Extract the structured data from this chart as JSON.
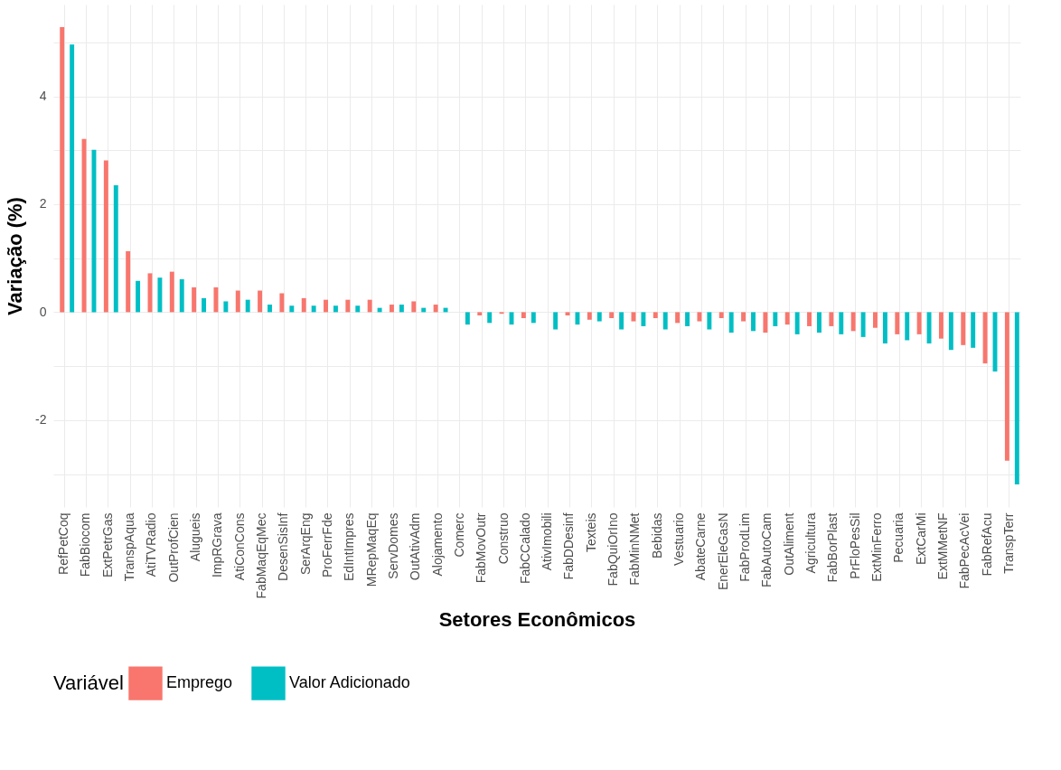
{
  "chart_data": {
    "type": "bar",
    "xlabel": "Setores Econômicos",
    "ylabel": "Variação (%)",
    "legend_title": "Variável",
    "legend": "bottom",
    "grid": true,
    "categories": [
      "RefPetCoq",
      "FabBiocom",
      "ExtPetrGas",
      "TranspAqua",
      "AtiTVRadio",
      "OutProfCien",
      "Alugueis",
      "ImpRGrava",
      "AtiConCons",
      "FabMaqEqMec",
      "DesenSisInf",
      "SerArqEng",
      "ProFerrFde",
      "EdIntImpres",
      "MRepMaqEq",
      "ServDomes",
      "OutAtivAdm",
      "Alojamento",
      "Comerc",
      "FabMovOutr",
      "Construo",
      "FabCCalado",
      "AtivImobili",
      "FabDDesinf",
      "Texteis",
      "FabQuiOrIno",
      "FabMinNMet",
      "Bebidas",
      "Vestuario",
      "AbateCarne",
      "EnerEleGasN",
      "FabProdLim",
      "FabAutoCam",
      "OutAliment",
      "Agricultura",
      "FabBorPlast",
      "PrFloPesSil",
      "ExtMinFerro",
      "Pecuaria",
      "ExtCarMi",
      "ExtMMetNF",
      "FabPecAcVei",
      "FabRefAcu",
      "TranspTerr"
    ],
    "series": [
      {
        "name": "Emprego",
        "color": "#f8766d",
        "values": [
          5.28,
          3.21,
          2.81,
          1.13,
          0.72,
          0.75,
          0.46,
          0.46,
          0.4,
          0.4,
          0.35,
          0.26,
          0.23,
          0.23,
          0.23,
          0.14,
          0.2,
          0.14,
          0,
          -0.06,
          -0.03,
          -0.11,
          0,
          -0.06,
          -0.14,
          -0.11,
          -0.17,
          -0.11,
          -0.2,
          -0.17,
          -0.11,
          -0.17,
          -0.38,
          -0.23,
          -0.26,
          -0.26,
          -0.35,
          -0.29,
          -0.41,
          -0.41,
          -0.49,
          -0.61,
          -0.95,
          -2.75
        ]
      },
      {
        "name": "Valor Adicionado",
        "color": "#00bfc4",
        "values": [
          4.96,
          3.01,
          2.35,
          0.58,
          0.64,
          0.61,
          0.26,
          0.2,
          0.23,
          0.14,
          0.12,
          0.12,
          0.12,
          0.12,
          0.08,
          0.14,
          0.08,
          0.08,
          -0.23,
          -0.2,
          -0.23,
          -0.2,
          -0.32,
          -0.23,
          -0.17,
          -0.32,
          -0.26,
          -0.32,
          -0.26,
          -0.32,
          -0.38,
          -0.35,
          -0.26,
          -0.41,
          -0.38,
          -0.41,
          -0.46,
          -0.58,
          -0.52,
          -0.58,
          -0.7,
          -0.66,
          -1.1,
          -3.19
        ]
      }
    ],
    "ylim": [
      -3.61,
      5.7
    ],
    "yticks": [
      {
        "value": -3,
        "label": null
      },
      -2,
      {
        "value": -1,
        "label": null
      },
      0,
      {
        "value": 1,
        "label": null
      },
      2,
      {
        "value": 3,
        "label": null
      },
      4,
      {
        "value": 5,
        "label": null
      }
    ]
  }
}
